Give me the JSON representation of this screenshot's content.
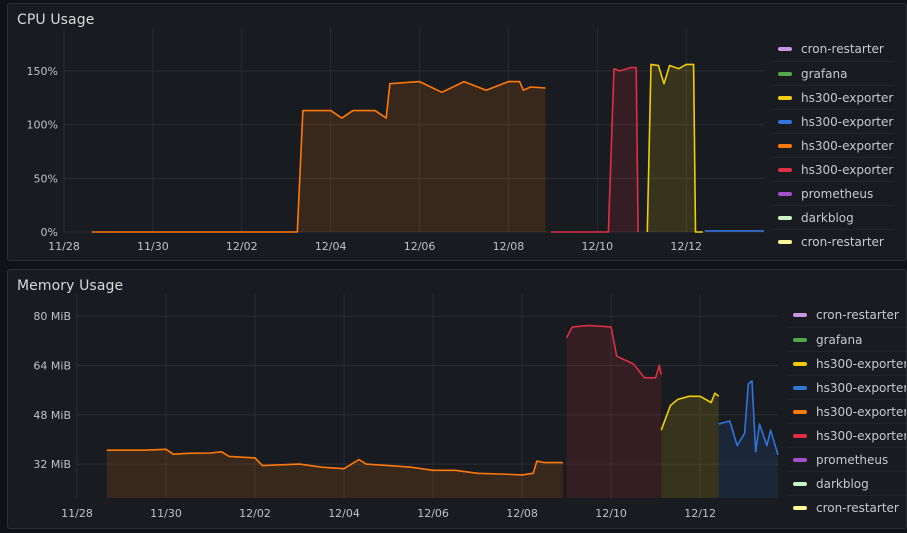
{
  "colors": {
    "cron-restarter-1": "#ca95e5",
    "grafana": "#56a64b",
    "hs300-yellow": "#f2cc0c",
    "hs300-blue": "#3274d9",
    "hs300-orange": "#ff780a",
    "hs300-red": "#e02f44",
    "prometheus": "#a352cc",
    "darkblog": "#c8f2c2",
    "cron-restarter-2": "#fff899"
  },
  "chart_data": [
    {
      "type": "line",
      "title": "CPU Usage",
      "x_ticks": [
        "11/28",
        "11/30",
        "12/02",
        "12/04",
        "12/06",
        "12/08",
        "12/10",
        "12/12"
      ],
      "xlim": [
        "11/28",
        "12/13 18:00"
      ],
      "y_ticks": [
        "0%",
        "50%",
        "100%",
        "150%"
      ],
      "ylim": [
        0,
        175
      ],
      "unit": "%",
      "grid": true,
      "legend_placement": "right",
      "legend": [
        {
          "name": "cron-restarter",
          "color": "#ca95e5"
        },
        {
          "name": "grafana",
          "color": "#56a64b"
        },
        {
          "name": "hs300-exporter",
          "color": "#f2cc0c"
        },
        {
          "name": "hs300-exporter",
          "color": "#3274d9"
        },
        {
          "name": "hs300-exporter",
          "color": "#ff780a"
        },
        {
          "name": "hs300-exporter",
          "color": "#e02f44"
        },
        {
          "name": "prometheus",
          "color": "#a352cc"
        },
        {
          "name": "darkblog",
          "color": "#c8f2c2"
        },
        {
          "name": "cron-restarter",
          "color": "#fff899"
        }
      ],
      "series": [
        {
          "name": "hs300-exporter",
          "color": "#ff780a",
          "fill": true,
          "points": [
            [
              "11/28 15:00",
              0
            ],
            [
              "12/03 06:00",
              0
            ],
            [
              "12/03 09:00",
              113
            ],
            [
              "12/04 00:00",
              113
            ],
            [
              "12/04 06:00",
              106
            ],
            [
              "12/04 12:00",
              113
            ],
            [
              "12/05 00:00",
              113
            ],
            [
              "12/05 06:00",
              106
            ],
            [
              "12/05 08:00",
              138
            ],
            [
              "12/06 00:00",
              140
            ],
            [
              "12/06 12:00",
              130
            ],
            [
              "12/07 00:00",
              140
            ],
            [
              "12/07 12:00",
              132
            ],
            [
              "12/08 00:00",
              140
            ],
            [
              "12/08 06:00",
              140
            ],
            [
              "12/08 08:00",
              132
            ],
            [
              "12/08 12:00",
              135
            ],
            [
              "12/08 20:00",
              134
            ]
          ]
        },
        {
          "name": "hs300-exporter",
          "color": "#e02f44",
          "fill": true,
          "points": [
            [
              "12/08 23:00",
              0
            ],
            [
              "12/10 06:00",
              0
            ],
            [
              "12/10 09:00",
              152
            ],
            [
              "12/10 12:00",
              150
            ],
            [
              "12/10 18:00",
              153
            ],
            [
              "12/10 21:00",
              153
            ],
            [
              "12/10 22:00",
              0
            ]
          ]
        },
        {
          "name": "hs300-exporter",
          "color": "#f2cc0c",
          "fill": true,
          "points": [
            [
              "12/11 03:00",
              0
            ],
            [
              "12/11 05:00",
              156
            ],
            [
              "12/11 09:00",
              155
            ],
            [
              "12/11 12:00",
              138
            ],
            [
              "12/11 15:00",
              155
            ],
            [
              "12/11 20:00",
              152
            ],
            [
              "12/12 00:00",
              156
            ],
            [
              "12/12 04:00",
              156
            ],
            [
              "12/12 05:00",
              0
            ],
            [
              "12/12 09:00",
              0
            ]
          ]
        },
        {
          "name": "hs300-exporter",
          "color": "#3274d9",
          "fill": false,
          "points": [
            [
              "12/12 10:00",
              1
            ],
            [
              "12/13 18:00",
              1
            ]
          ]
        }
      ]
    },
    {
      "type": "line",
      "title": "Memory Usage",
      "x_ticks": [
        "11/28",
        "11/30",
        "12/02",
        "12/04",
        "12/06",
        "12/08",
        "12/10",
        "12/12"
      ],
      "xlim": [
        "11/28",
        "12/13 18:00"
      ],
      "y_ticks": [
        "32 MiB",
        "48 MiB",
        "64 MiB",
        "80 MiB"
      ],
      "ylim": [
        21,
        82
      ],
      "unit": "MiB",
      "grid": true,
      "legend_placement": "right",
      "legend": [
        {
          "name": "cron-restarter",
          "color": "#ca95e5"
        },
        {
          "name": "grafana",
          "color": "#56a64b"
        },
        {
          "name": "hs300-exporter",
          "color": "#f2cc0c"
        },
        {
          "name": "hs300-exporter",
          "color": "#3274d9"
        },
        {
          "name": "hs300-exporter",
          "color": "#ff780a"
        },
        {
          "name": "hs300-exporter",
          "color": "#e02f44"
        },
        {
          "name": "prometheus",
          "color": "#a352cc"
        },
        {
          "name": "darkblog",
          "color": "#c8f2c2"
        },
        {
          "name": "cron-restarter",
          "color": "#fff899"
        }
      ],
      "series": [
        {
          "name": "hs300-exporter",
          "color": "#ff780a",
          "fill": true,
          "points": [
            [
              "11/28 16:00",
              36.5
            ],
            [
              "11/29 12:00",
              36.5
            ],
            [
              "11/30 00:00",
              36.8
            ],
            [
              "11/30 04:00",
              35.2
            ],
            [
              "11/30 12:00",
              35.5
            ],
            [
              "12/01 00:00",
              35.6
            ],
            [
              "12/01 06:00",
              36
            ],
            [
              "12/01 10:00",
              34.5
            ],
            [
              "12/02 00:00",
              34
            ],
            [
              "12/02 04:00",
              31.5
            ],
            [
              "12/03 00:00",
              32
            ],
            [
              "12/03 12:00",
              31
            ],
            [
              "12/04 00:00",
              30.5
            ],
            [
              "12/04 08:00",
              33.5
            ],
            [
              "12/04 12:00",
              32
            ],
            [
              "12/05 00:00",
              31.5
            ],
            [
              "12/05 12:00",
              31
            ],
            [
              "12/06 00:00",
              30
            ],
            [
              "12/06 12:00",
              30
            ],
            [
              "12/07 00:00",
              29
            ],
            [
              "12/07 12:00",
              28.8
            ],
            [
              "12/08 00:00",
              28.5
            ],
            [
              "12/08 06:00",
              29
            ],
            [
              "12/08 08:00",
              33
            ],
            [
              "12/08 12:00",
              32.5
            ],
            [
              "12/08 22:00",
              32.5
            ]
          ]
        },
        {
          "name": "hs300-exporter",
          "color": "#e02f44",
          "fill": true,
          "points": [
            [
              "12/09 00:00",
              73
            ],
            [
              "12/09 03:00",
              76.5
            ],
            [
              "12/09 12:00",
              77
            ],
            [
              "12/10 00:00",
              76.5
            ],
            [
              "12/10 03:00",
              67
            ],
            [
              "12/10 12:00",
              64.5
            ],
            [
              "12/10 18:00",
              60
            ],
            [
              "12/11 00:00",
              60
            ],
            [
              "12/11 02:00",
              64
            ],
            [
              "12/11 03:00",
              61
            ]
          ]
        },
        {
          "name": "hs300-exporter",
          "color": "#f2cc0c",
          "fill": true,
          "points": [
            [
              "12/11 03:00",
              43
            ],
            [
              "12/11 08:00",
              51
            ],
            [
              "12/11 12:00",
              53
            ],
            [
              "12/11 18:00",
              54
            ],
            [
              "12/12 00:00",
              54
            ],
            [
              "12/12 06:00",
              52
            ],
            [
              "12/12 08:00",
              55
            ],
            [
              "12/12 10:00",
              54
            ]
          ]
        },
        {
          "name": "hs300-exporter",
          "color": "#3274d9",
          "fill": true,
          "points": [
            [
              "12/12 10:00",
              45
            ],
            [
              "12/12 16:00",
              46
            ],
            [
              "12/12 20:00",
              38
            ],
            [
              "12/13 00:00",
              42
            ],
            [
              "12/13 02:00",
              58
            ],
            [
              "12/13 04:00",
              59
            ],
            [
              "12/13 06:00",
              36
            ],
            [
              "12/13 08:00",
              45
            ],
            [
              "12/13 12:00",
              38
            ],
            [
              "12/13 14:00",
              43
            ],
            [
              "12/13 18:00",
              35
            ]
          ]
        }
      ]
    }
  ]
}
